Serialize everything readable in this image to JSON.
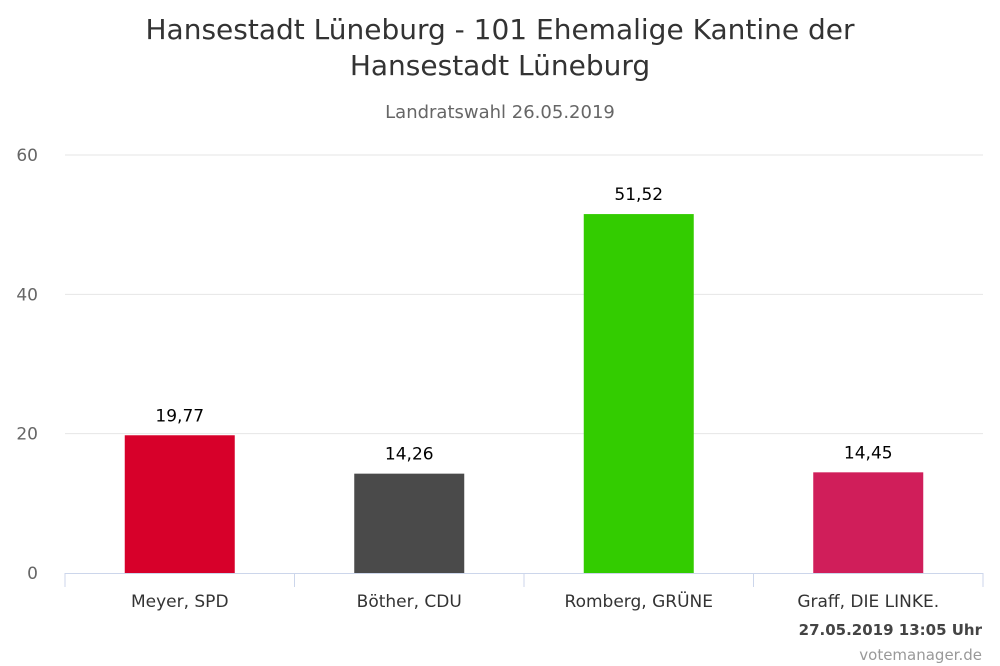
{
  "chart_data": {
    "type": "bar",
    "title": "Hansestadt Lüneburg - 101 Ehemalige Kantine der Hansestadt Lüneburg",
    "title_lines": [
      "Hansestadt Lüneburg - 101 Ehemalige Kantine der",
      "Hansestadt Lüneburg"
    ],
    "subtitle": "Landratswahl 26.05.2019",
    "categories": [
      "Meyer, SPD",
      "Böther, CDU",
      "Romberg, GRÜNE",
      "Graff, DIE LINKE."
    ],
    "values": [
      19.77,
      14.26,
      51.52,
      14.45
    ],
    "data_labels": [
      "19,77",
      "14,26",
      "51,52",
      "14,45"
    ],
    "colors": [
      "#d7002a",
      "#4a4a4a",
      "#33cc00",
      "#d01e5a"
    ],
    "xlabel": "",
    "ylabel": "",
    "ylim": [
      0,
      60
    ],
    "yticks": [
      0,
      20,
      40,
      60
    ],
    "grid": true,
    "legend": "none"
  },
  "credits": {
    "timestamp": "27.05.2019 13:05 Uhr",
    "source": "votemanager.de"
  }
}
